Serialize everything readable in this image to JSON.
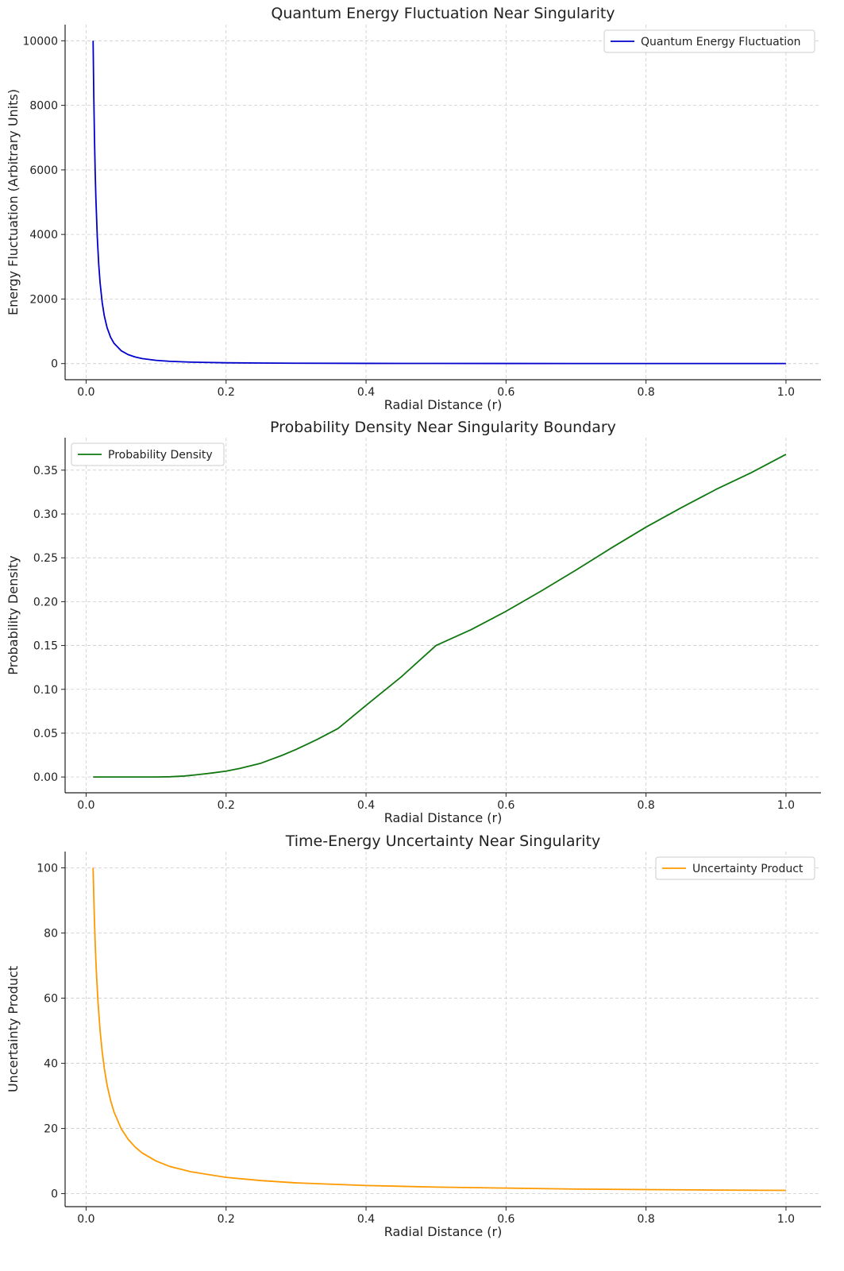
{
  "chart_data": [
    {
      "type": "line",
      "title": "Quantum Energy Fluctuation Near Singularity",
      "xlabel": "Radial Distance (r)",
      "ylabel": "Energy Fluctuation (Arbitrary Units)",
      "xlim": [
        -0.03,
        1.05
      ],
      "ylim": [
        -500,
        10500
      ],
      "xticks": [
        0.0,
        0.2,
        0.4,
        0.6,
        0.8,
        1.0
      ],
      "xtick_labels": [
        "0.0",
        "0.2",
        "0.4",
        "0.6",
        "0.8",
        "1.0"
      ],
      "yticks": [
        0,
        2000,
        4000,
        6000,
        8000,
        10000
      ],
      "ytick_labels": [
        "0",
        "2000",
        "4000",
        "6000",
        "8000",
        "10000"
      ],
      "grid": true,
      "legend_position": "top-right",
      "series": [
        {
          "name": "Quantum Energy Fluctuation",
          "color": "#0000cc",
          "x": [
            0.01,
            0.011,
            0.012,
            0.013,
            0.014,
            0.016,
            0.018,
            0.02,
            0.023,
            0.026,
            0.03,
            0.035,
            0.04,
            0.05,
            0.06,
            0.07,
            0.08,
            0.1,
            0.12,
            0.15,
            0.2,
            0.25,
            0.3,
            0.4,
            0.5,
            0.6,
            0.7,
            0.8,
            0.9,
            1.0
          ],
          "y": [
            10000,
            8264,
            6944,
            5917,
            5102,
            3906,
            3086,
            2500,
            1890,
            1479,
            1111,
            816,
            625,
            400,
            278,
            204,
            156,
            100,
            69,
            44,
            25,
            16,
            11,
            6.3,
            4,
            2.8,
            2,
            1.6,
            1.2,
            1
          ]
        }
      ]
    },
    {
      "type": "line",
      "title": "Probability Density Near Singularity Boundary",
      "xlabel": "Radial Distance (r)",
      "ylabel": "Probability Density",
      "xlim": [
        -0.03,
        1.05
      ],
      "ylim": [
        -0.018,
        0.387
      ],
      "xticks": [
        0.0,
        0.2,
        0.4,
        0.6,
        0.8,
        1.0
      ],
      "xtick_labels": [
        "0.0",
        "0.2",
        "0.4",
        "0.6",
        "0.8",
        "1.0"
      ],
      "yticks": [
        0.0,
        0.05,
        0.1,
        0.15,
        0.2,
        0.25,
        0.3,
        0.35
      ],
      "ytick_labels": [
        "0.00",
        "0.05",
        "0.10",
        "0.15",
        "0.20",
        "0.25",
        "0.30",
        "0.35"
      ],
      "grid": true,
      "legend_position": "top-left",
      "series": [
        {
          "name": "Probability Density",
          "color": "#117711",
          "x": [
            0.01,
            0.05,
            0.1,
            0.12,
            0.14,
            0.16,
            0.18,
            0.2,
            0.22,
            0.25,
            0.28,
            0.3,
            0.33,
            0.36,
            0.4,
            0.45,
            0.5,
            0.55,
            0.6,
            0.65,
            0.7,
            0.75,
            0.8,
            0.85,
            0.9,
            0.95,
            1.0
          ],
          "y": [
            0.0,
            0.0,
            0.0,
            0.0003,
            0.0011,
            0.0027,
            0.0046,
            0.0067,
            0.0099,
            0.0158,
            0.0247,
            0.0314,
            0.0428,
            0.0553,
            0.0817,
            0.114,
            0.15,
            0.168,
            0.189,
            0.212,
            0.236,
            0.261,
            0.285,
            0.307,
            0.328,
            0.347,
            0.368
          ]
        }
      ]
    },
    {
      "type": "line",
      "title": "Time-Energy Uncertainty Near Singularity",
      "xlabel": "Radial Distance (r)",
      "ylabel": "Uncertainty Product",
      "xlim": [
        -0.03,
        1.05
      ],
      "ylim": [
        -4,
        105
      ],
      "xticks": [
        0.0,
        0.2,
        0.4,
        0.6,
        0.8,
        1.0
      ],
      "xtick_labels": [
        "0.0",
        "0.2",
        "0.4",
        "0.6",
        "0.8",
        "1.0"
      ],
      "yticks": [
        0,
        20,
        40,
        60,
        80,
        100
      ],
      "ytick_labels": [
        "0",
        "20",
        "40",
        "60",
        "80",
        "100"
      ],
      "grid": true,
      "legend_position": "top-right",
      "series": [
        {
          "name": "Uncertainty Product",
          "color": "#ff9900",
          "x": [
            0.01,
            0.011,
            0.012,
            0.013,
            0.014,
            0.015,
            0.017,
            0.02,
            0.023,
            0.026,
            0.03,
            0.035,
            0.04,
            0.05,
            0.06,
            0.07,
            0.08,
            0.1,
            0.12,
            0.15,
            0.2,
            0.25,
            0.3,
            0.4,
            0.5,
            0.6,
            0.7,
            0.8,
            0.9,
            1.0
          ],
          "y": [
            100,
            90.9,
            83.3,
            76.9,
            71.4,
            66.7,
            58.8,
            50,
            43.5,
            38.5,
            33.3,
            28.6,
            25,
            20,
            16.7,
            14.3,
            12.5,
            10,
            8.3,
            6.7,
            5,
            4,
            3.3,
            2.5,
            2,
            1.7,
            1.4,
            1.25,
            1.1,
            1
          ]
        }
      ]
    }
  ]
}
